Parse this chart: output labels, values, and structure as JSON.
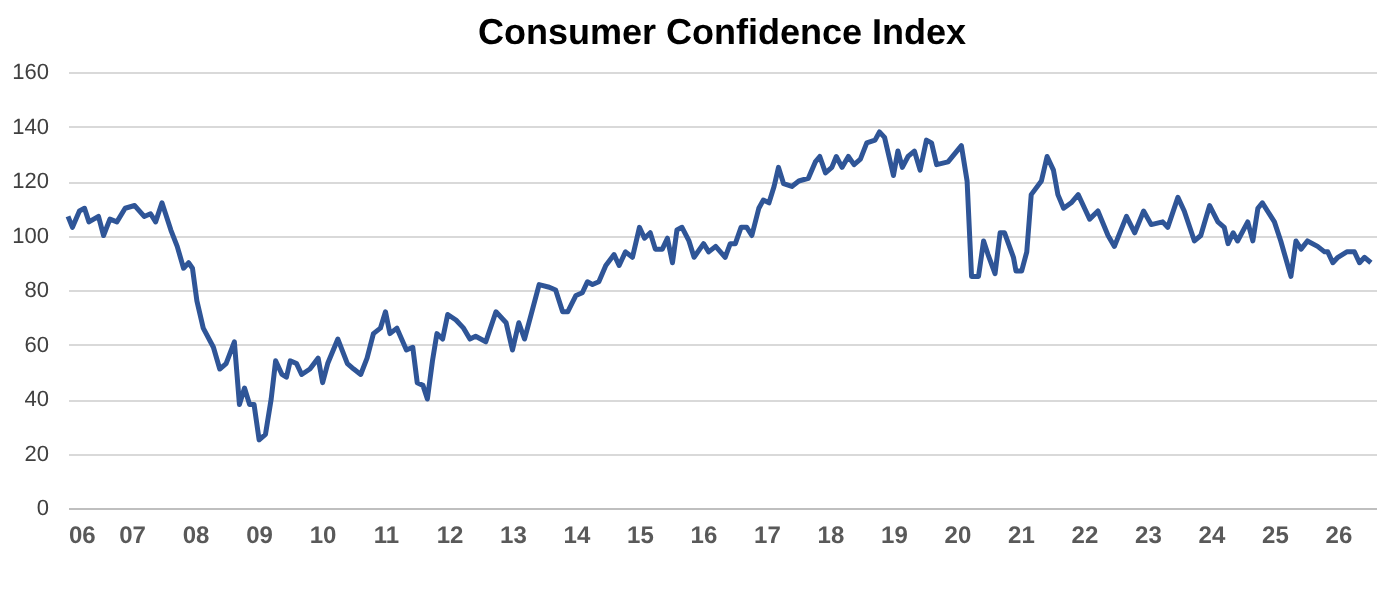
{
  "chart_data": {
    "type": "line",
    "title": "Consumer Confidence Index",
    "x": [
      2006.0,
      2006.07,
      2006.18,
      2006.26,
      2006.33,
      2006.48,
      2006.56,
      2006.66,
      2006.77,
      2006.9,
      2007.05,
      2007.2,
      2007.3,
      2007.38,
      2007.48,
      2007.62,
      2007.72,
      2007.82,
      2007.9,
      2007.96,
      2008.03,
      2008.13,
      2008.29,
      2008.39,
      2008.49,
      2008.62,
      2008.7,
      2008.78,
      2008.86,
      2008.93,
      2009.01,
      2009.11,
      2009.2,
      2009.27,
      2009.37,
      2009.44,
      2009.5,
      2009.6,
      2009.68,
      2009.81,
      2009.94,
      2010.01,
      2010.09,
      2010.25,
      2010.4,
      2010.5,
      2010.61,
      2010.71,
      2010.81,
      2010.92,
      2011.0,
      2011.07,
      2011.18,
      2011.33,
      2011.43,
      2011.5,
      2011.59,
      2011.66,
      2011.74,
      2011.81,
      2011.9,
      2011.98,
      2012.11,
      2012.23,
      2012.33,
      2012.42,
      2012.58,
      2012.74,
      2012.9,
      2013.0,
      2013.1,
      2013.19,
      2013.42,
      2013.58,
      2013.68,
      2013.79,
      2013.87,
      2014.0,
      2014.1,
      2014.18,
      2014.26,
      2014.36,
      2014.47,
      2014.6,
      2014.68,
      2014.78,
      2014.89,
      2015.0,
      2015.08,
      2015.17,
      2015.25,
      2015.36,
      2015.44,
      2015.52,
      2015.59,
      2015.67,
      2015.78,
      2015.86,
      2016.01,
      2016.09,
      2016.2,
      2016.35,
      2016.43,
      2016.51,
      2016.6,
      2016.69,
      2016.77,
      2016.88,
      2016.95,
      2017.04,
      2017.12,
      2017.19,
      2017.27,
      2017.4,
      2017.51,
      2017.66,
      2017.77,
      2017.84,
      2017.93,
      2018.03,
      2018.1,
      2018.19,
      2018.29,
      2018.38,
      2018.48,
      2018.58,
      2018.71,
      2018.78,
      2018.86,
      2019.0,
      2019.07,
      2019.14,
      2019.23,
      2019.33,
      2019.42,
      2019.52,
      2019.6,
      2019.68,
      2019.86,
      2020.07,
      2020.16,
      2020.23,
      2020.34,
      2020.42,
      2020.49,
      2020.6,
      2020.68,
      2020.75,
      2020.89,
      2020.93,
      2021.02,
      2021.1,
      2021.17,
      2021.33,
      2021.42,
      2021.52,
      2021.59,
      2021.68,
      2021.8,
      2021.91,
      2022.01,
      2022.09,
      2022.22,
      2022.38,
      2022.48,
      2022.67,
      2022.8,
      2022.94,
      2023.06,
      2023.24,
      2023.32,
      2023.48,
      2023.58,
      2023.74,
      2023.84,
      2023.98,
      2024.11,
      2024.21,
      2024.27,
      2024.35,
      2024.42,
      2024.58,
      2024.66,
      2024.74,
      2024.81,
      2025.0,
      2025.1,
      2025.26,
      2025.34,
      2025.42,
      2025.52,
      2025.68,
      2025.79,
      2025.84,
      2025.92,
      2026.0,
      2026.14,
      2026.26,
      2026.34,
      2026.42,
      2026.52
    ],
    "series": [
      {
        "color": "#2f5597",
        "values": [
          107,
          103,
          109,
          110,
          105,
          107,
          100,
          106,
          105,
          110,
          111,
          107,
          108,
          105,
          112,
          102,
          96,
          88,
          90,
          88,
          76,
          66,
          59,
          51,
          53,
          61,
          38,
          44,
          38,
          38,
          25,
          27,
          40,
          54,
          49,
          48,
          54,
          53,
          49,
          51,
          55,
          46,
          53,
          62,
          53,
          51,
          49,
          55,
          64,
          66,
          72,
          64,
          66,
          58,
          59,
          46,
          45,
          40,
          54,
          64,
          62,
          71,
          69,
          66,
          62,
          63,
          61,
          72,
          68,
          58,
          68,
          62,
          82,
          81,
          80,
          72,
          72,
          78,
          79,
          83,
          82,
          83,
          89,
          93,
          89,
          94,
          92,
          103,
          99,
          101,
          95,
          95,
          99,
          90,
          102,
          103,
          98,
          92,
          97,
          94,
          96,
          92,
          97,
          97,
          103,
          103,
          100,
          110,
          113,
          112,
          118,
          125,
          119,
          118,
          120,
          121,
          127,
          129,
          123,
          125,
          129,
          125,
          129,
          126,
          128,
          134,
          135,
          138,
          136,
          122,
          131,
          125,
          129,
          131,
          124,
          135,
          134,
          126,
          127,
          133,
          120,
          85,
          85,
          98,
          93,
          86,
          101,
          101,
          92,
          87,
          87,
          94,
          115,
          120,
          129,
          124,
          115,
          110,
          112,
          115,
          110,
          106,
          109,
          100,
          96,
          107,
          101,
          109,
          104,
          105,
          103,
          114,
          109,
          98,
          100,
          111,
          105,
          103,
          97,
          101,
          98,
          105,
          98,
          110,
          112,
          105,
          98,
          85,
          98,
          95,
          98,
          96,
          94,
          94,
          90,
          92,
          94,
          94,
          90,
          92,
          90
        ]
      }
    ],
    "xlim": [
      2006,
      2026.6
    ],
    "xticks": [
      {
        "value": 2006,
        "label": "06"
      },
      {
        "value": 2007,
        "label": "07"
      },
      {
        "value": 2008,
        "label": "08"
      },
      {
        "value": 2009,
        "label": "09"
      },
      {
        "value": 2010,
        "label": "10"
      },
      {
        "value": 2011,
        "label": "11"
      },
      {
        "value": 2012,
        "label": "12"
      },
      {
        "value": 2013,
        "label": "13"
      },
      {
        "value": 2014,
        "label": "14"
      },
      {
        "value": 2015,
        "label": "15"
      },
      {
        "value": 2016,
        "label": "16"
      },
      {
        "value": 2017,
        "label": "17"
      },
      {
        "value": 2018,
        "label": "18"
      },
      {
        "value": 2019,
        "label": "19"
      },
      {
        "value": 2020,
        "label": "20"
      },
      {
        "value": 2021,
        "label": "21"
      },
      {
        "value": 2022,
        "label": "22"
      },
      {
        "value": 2023,
        "label": "23"
      },
      {
        "value": 2024,
        "label": "24"
      },
      {
        "value": 2025,
        "label": "25"
      },
      {
        "value": 2026,
        "label": "26"
      }
    ],
    "ylim": [
      0,
      160
    ],
    "yticks": [
      0,
      20,
      40,
      60,
      80,
      100,
      120,
      140,
      160
    ],
    "grid": "y",
    "legend": false,
    "marker": "none",
    "line_style": "solid"
  }
}
